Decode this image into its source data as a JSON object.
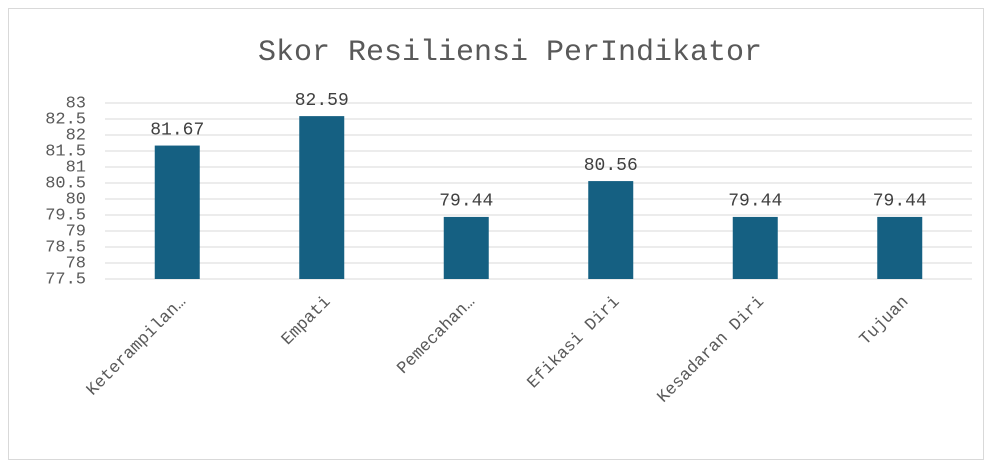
{
  "chart_data": {
    "type": "bar",
    "title": "Skor Resiliensi PerIndikator",
    "categories": [
      "Keterampilan…",
      "Empati",
      "Pemecahan…",
      "Efikasi Diri",
      "Kesadaran Diri",
      "Tujuan"
    ],
    "values": [
      81.67,
      82.59,
      79.44,
      80.56,
      79.44,
      79.44
    ],
    "color": "#156082",
    "ylim": [
      77.5,
      83
    ],
    "yticks": [
      77.5,
      78,
      78.5,
      79,
      79.5,
      80,
      80.5,
      81,
      81.5,
      82,
      82.5,
      83
    ],
    "grid": true
  }
}
